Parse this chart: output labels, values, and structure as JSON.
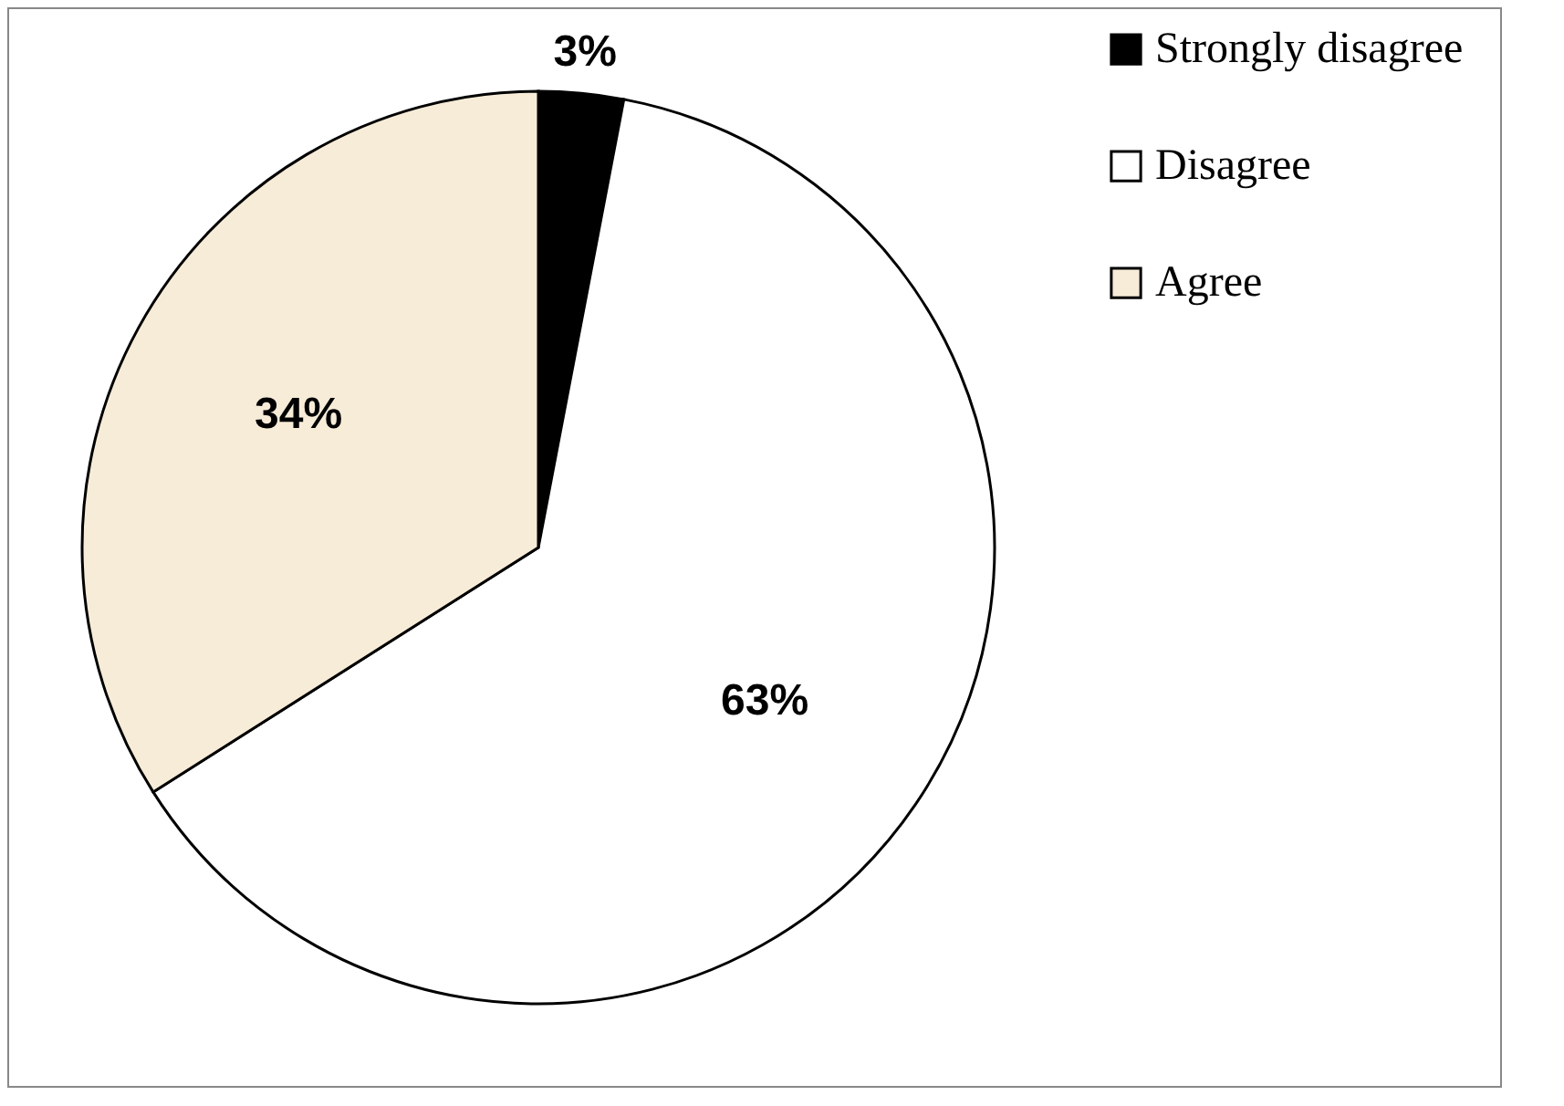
{
  "chart_data": {
    "type": "pie",
    "categories": [
      "Strongly disagree",
      "Disagree",
      "Agree"
    ],
    "values": [
      3,
      63,
      34
    ],
    "colors": [
      "#000000",
      "#ffffff",
      "#f7ecd8"
    ],
    "value_labels": [
      "3%",
      "63%",
      "34%"
    ],
    "legend": "right"
  }
}
